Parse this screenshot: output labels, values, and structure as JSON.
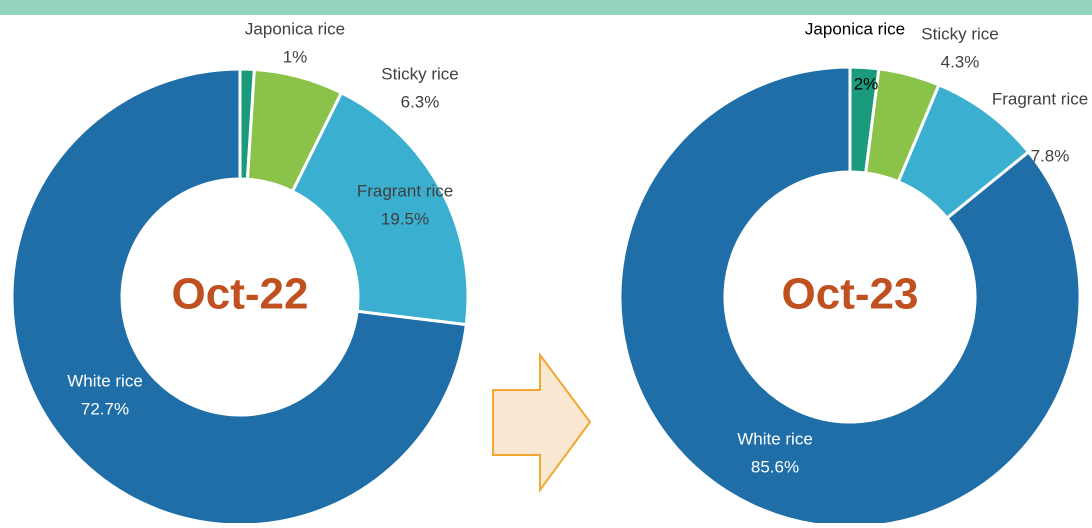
{
  "chart_data": [
    {
      "type": "donut",
      "title": "Oct-22",
      "categories": [
        "Japonica rice",
        "Sticky rice",
        "Fragrant rice",
        "White rice"
      ],
      "values": [
        1,
        6.3,
        19.5,
        72.7
      ],
      "value_labels": [
        "1%",
        "6.3%",
        "19.5%",
        "72.7%"
      ],
      "colors": [
        "#1b9a7c",
        "#8bc249",
        "#3aafd0",
        "#1f6ea8"
      ]
    },
    {
      "type": "donut",
      "title": "Oct-23",
      "categories": [
        "Japonica rice",
        "Sticky rice",
        "Fragrant rice",
        "White rice"
      ],
      "values": [
        2,
        4.3,
        7.8,
        85.6
      ],
      "value_labels": [
        "2%",
        "4.3%",
        "7.8%",
        "85.6%"
      ],
      "colors": [
        "#1b9a7c",
        "#8bc249",
        "#3aafd0",
        "#1f6ea8"
      ]
    }
  ]
}
